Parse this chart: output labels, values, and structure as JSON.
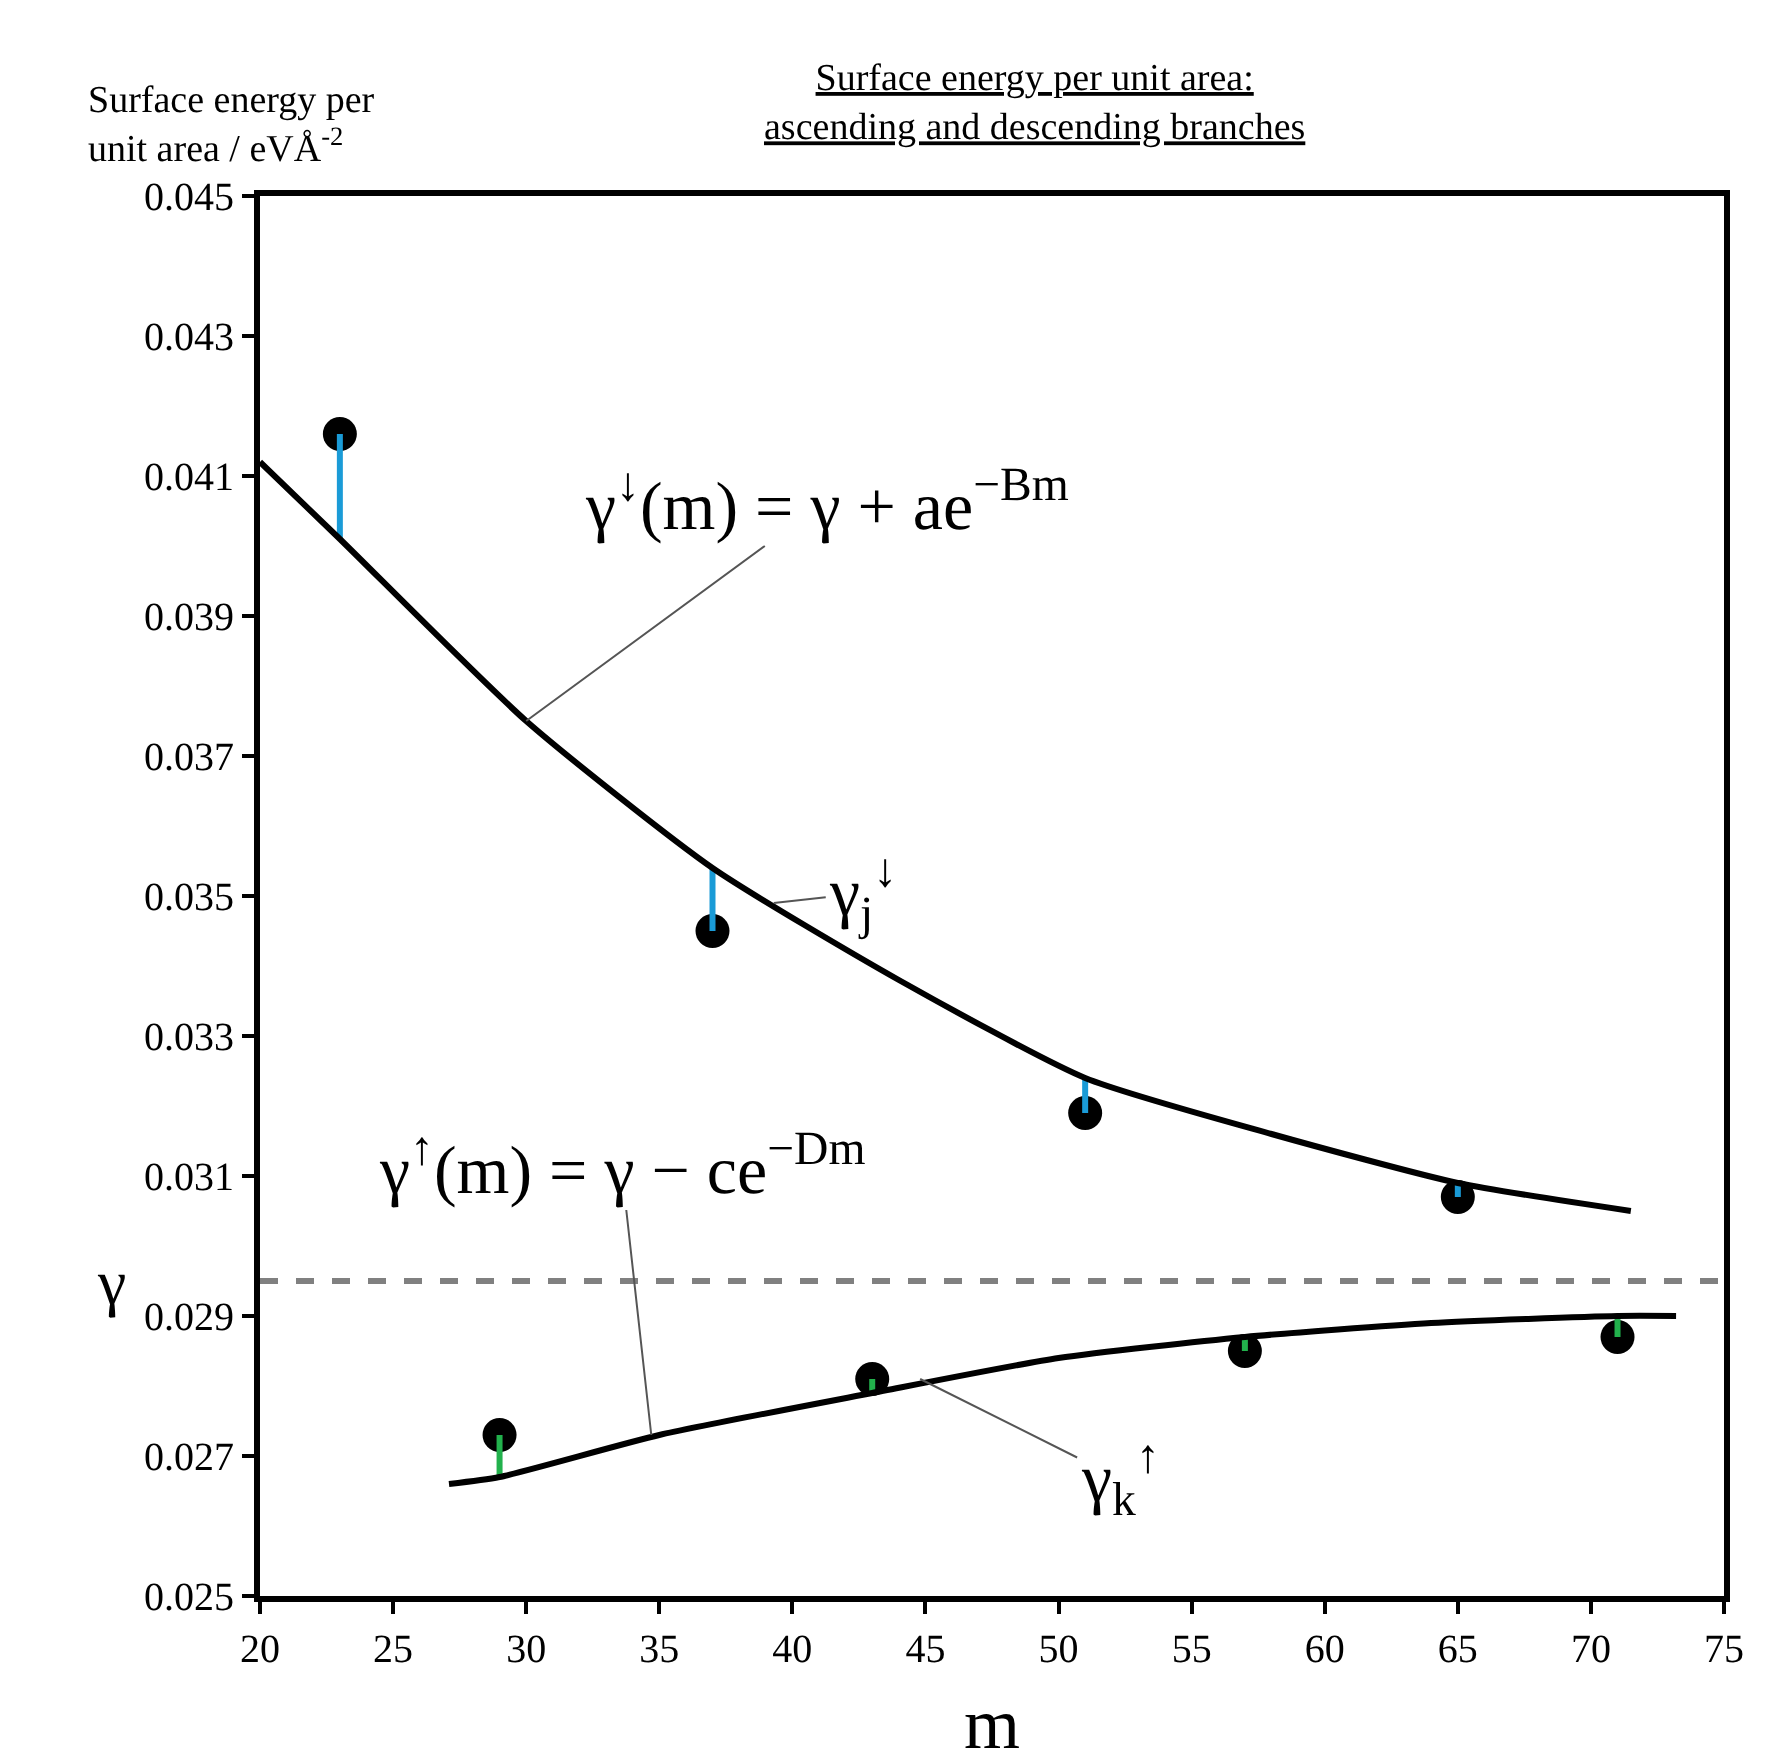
{
  "chart_data": {
    "type": "scatter",
    "title": "Surface energy per unit area:\nascending and descending branches",
    "ylabel": "Surface energy per\nunit area / eVÅ$^{-2}$",
    "xlabel": "m",
    "xlim": [
      20,
      75
    ],
    "xticks": [
      20,
      25,
      30,
      35,
      40,
      45,
      50,
      55,
      60,
      65,
      70,
      75
    ],
    "ylim": [
      0.025,
      0.045
    ],
    "yticks": [
      0.025,
      0.027,
      0.029,
      0.031,
      0.033,
      0.035,
      0.037,
      0.039,
      0.041,
      0.043,
      0.045
    ],
    "series": [
      {
        "type": "line",
        "color": "#1a9bd7",
        "marker": "none",
        "x": [
          23,
          23,
          null,
          37,
          37,
          null,
          51,
          51,
          null,
          65,
          65
        ],
        "values": [
          0.0416,
          0.0401,
          null,
          0.0345,
          0.0354,
          null,
          0.0319,
          0.0324,
          null,
          0.0307,
          0.0309
        ]
      },
      {
        "type": "line",
        "color": "#22b14c",
        "marker": "none",
        "x": [
          29,
          29,
          null,
          43,
          43,
          null,
          57,
          57,
          null,
          71,
          71
        ],
        "values": [
          0.0273,
          0.0267,
          null,
          0.0281,
          0.0279,
          null,
          0.0285,
          0.0287,
          null,
          0.0287,
          0.029
        ]
      },
      {
        "type": "line",
        "color": "#000000",
        "marker": "none",
        "x": [
          20,
          23,
          30,
          37,
          44,
          51,
          58,
          65,
          71.5
        ],
        "values": [
          0.0412,
          0.0401,
          0.0375,
          0.0354,
          0.0338,
          0.0324,
          0.0316,
          0.0309,
          0.0305
        ]
      },
      {
        "type": "line",
        "color": "#000000",
        "marker": "none",
        "x": [
          27.1,
          29,
          35,
          43,
          50,
          57,
          64,
          71,
          73.2
        ],
        "values": [
          0.0266,
          0.0267,
          0.0273,
          0.0279,
          0.0284,
          0.0287,
          0.0289,
          0.029,
          0.029
        ]
      },
      {
        "color": "#000000",
        "marker": "circle",
        "x": [
          23,
          37,
          51,
          65
        ],
        "values": [
          0.0416,
          0.0345,
          0.0319,
          0.0307
        ]
      },
      {
        "color": "#000000",
        "marker": "circle",
        "x": [
          29,
          43,
          57,
          71
        ],
        "values": [
          0.0273,
          0.0281,
          0.0285,
          0.0287
        ]
      }
    ],
    "ref_lines": [
      {
        "axis": "y",
        "value": 0.0295,
        "label": "γ",
        "color": "#808080",
        "line_style": "dashed"
      }
    ],
    "annotations": [
      {
        "text": "γ$^{↓}$(m) = γ + ae$^{−Bm}$",
        "x": 30,
        "y": 0.0375
      },
      {
        "text": "γ$_{j}$$^{↓}$",
        "x": 39.3,
        "y": 0.0349
      },
      {
        "text": "γ$^{↑}$(m) = γ − ce$^{−Dm}$",
        "x": 34.7,
        "y": 0.0273
      },
      {
        "text": "γ$_{k}$$^{↑}$",
        "x": 44.8,
        "y": 0.0281
      }
    ]
  }
}
